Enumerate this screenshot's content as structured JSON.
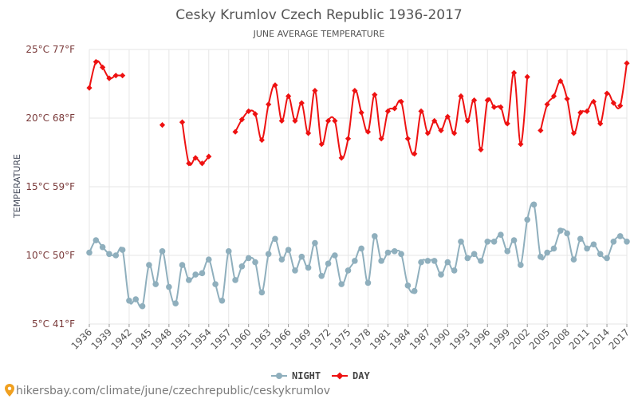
{
  "chart_data": {
    "type": "line",
    "title": "Cesky Krumlov Czech Republic 1936-2017",
    "subtitle": "JUNE AVERAGE TEMPERATURE",
    "ylabel": "TEMPERATURE",
    "xlabel": "",
    "ylim": [
      5,
      25
    ],
    "xlim": [
      1936,
      2017
    ],
    "y_ticks": [
      {
        "value": 5,
        "label": "5°C 41°F"
      },
      {
        "value": 10,
        "label": "10°C 50°F"
      },
      {
        "value": 15,
        "label": "15°C 59°F"
      },
      {
        "value": 20,
        "label": "20°C 68°F"
      },
      {
        "value": 25,
        "label": "25°C 77°F"
      }
    ],
    "x_ticks": [
      "1936",
      "1939",
      "1942",
      "1945",
      "1948",
      "1951",
      "1954",
      "1957",
      "1960",
      "1963",
      "1966",
      "1969",
      "1972",
      "1975",
      "1978",
      "1981",
      "1984",
      "1987",
      "1990",
      "1993",
      "1996",
      "1999",
      "2002",
      "2005",
      "2008",
      "2011",
      "2014",
      "2017"
    ],
    "grid": true,
    "legend_position": "bottom-center",
    "series": [
      {
        "name": "NIGHT",
        "color": "#8fafbd",
        "marker": "circle",
        "x": [
          1936,
          1937,
          1938,
          1939,
          1940,
          1941,
          1942,
          1943,
          1944,
          1945,
          1946,
          1947,
          1948,
          1949,
          1950,
          1951,
          1952,
          1953,
          1954,
          1955,
          1956,
          1957,
          1958,
          1959,
          1960,
          1961,
          1962,
          1963,
          1964,
          1965,
          1966,
          1967,
          1968,
          1969,
          1970,
          1971,
          1972,
          1973,
          1974,
          1975,
          1976,
          1977,
          1978,
          1979,
          1980,
          1981,
          1982,
          1983,
          1984,
          1985,
          1986,
          1987,
          1988,
          1989,
          1990,
          1991,
          1992,
          1993,
          1994,
          1995,
          1996,
          1997,
          1998,
          1999,
          2000,
          2001,
          2002,
          2003,
          2004,
          2005,
          2006,
          2007,
          2008,
          2009,
          2010,
          2011,
          2012,
          2013,
          2014,
          2015,
          2016,
          2017
        ],
        "values": [
          10.2,
          11.1,
          10.6,
          10.1,
          10.0,
          10.4,
          6.7,
          6.8,
          6.3,
          9.3,
          7.9,
          10.3,
          7.7,
          6.5,
          9.3,
          8.2,
          8.6,
          8.7,
          9.7,
          7.9,
          6.7,
          10.3,
          8.2,
          9.2,
          9.8,
          9.5,
          7.3,
          10.1,
          11.2,
          9.7,
          10.4,
          8.9,
          9.9,
          9.1,
          10.9,
          8.5,
          9.4,
          10.0,
          7.9,
          8.9,
          9.6,
          10.5,
          8.0,
          11.4,
          9.6,
          10.2,
          10.3,
          10.1,
          7.8,
          7.4,
          9.5,
          9.6,
          9.6,
          8.6,
          9.5,
          8.9,
          11.0,
          9.8,
          10.1,
          9.6,
          11.0,
          11.0,
          11.5,
          10.3,
          11.1,
          9.3,
          12.6,
          13.7,
          9.9,
          10.2,
          10.5,
          11.8,
          11.6,
          9.7,
          11.2,
          10.5,
          10.8,
          10.1,
          9.8,
          11.0,
          11.4,
          11.0
        ]
      },
      {
        "name": "DAY",
        "color": "#ee1111",
        "marker": "diamond",
        "x": [
          1936,
          1937,
          1938,
          1939,
          1940,
          1941,
          1942,
          1943,
          1944,
          1945,
          1946,
          1947,
          1948,
          1949,
          1950,
          1951,
          1952,
          1953,
          1954,
          1955,
          1956,
          1957,
          1958,
          1959,
          1960,
          1961,
          1962,
          1963,
          1964,
          1965,
          1966,
          1967,
          1968,
          1969,
          1970,
          1971,
          1972,
          1973,
          1974,
          1975,
          1976,
          1977,
          1978,
          1979,
          1980,
          1981,
          1982,
          1983,
          1984,
          1985,
          1986,
          1987,
          1988,
          1989,
          1990,
          1991,
          1992,
          1993,
          1994,
          1995,
          1996,
          1997,
          1998,
          1999,
          2000,
          2001,
          2002,
          2003,
          2004,
          2005,
          2006,
          2007,
          2008,
          2009,
          2010,
          2011,
          2012,
          2013,
          2014,
          2015,
          2016,
          2017
        ],
        "values": [
          22.2,
          24.1,
          23.7,
          22.9,
          23.1,
          23.1,
          null,
          null,
          null,
          null,
          null,
          19.5,
          null,
          null,
          19.7,
          16.7,
          17.1,
          16.7,
          17.2,
          null,
          null,
          null,
          19.0,
          19.9,
          20.5,
          20.3,
          18.4,
          21.0,
          22.4,
          19.8,
          21.6,
          19.8,
          21.1,
          18.9,
          22.0,
          18.1,
          19.8,
          19.8,
          17.1,
          18.5,
          22.0,
          20.4,
          19.0,
          21.7,
          18.5,
          20.5,
          20.7,
          21.2,
          18.5,
          17.4,
          20.5,
          18.9,
          19.8,
          19.1,
          20.1,
          18.9,
          21.6,
          19.8,
          21.3,
          17.7,
          21.3,
          20.8,
          20.8,
          19.6,
          23.3,
          18.1,
          23.0,
          null,
          19.1,
          21.0,
          21.6,
          22.7,
          21.4,
          18.9,
          20.4,
          20.5,
          21.2,
          19.6,
          21.8,
          21.1,
          20.9,
          24.0
        ]
      }
    ]
  },
  "credit": "hikersbay.com/climate/june/czechrepublic/ceskykrumlov",
  "credit_icon": "map-pin-icon"
}
